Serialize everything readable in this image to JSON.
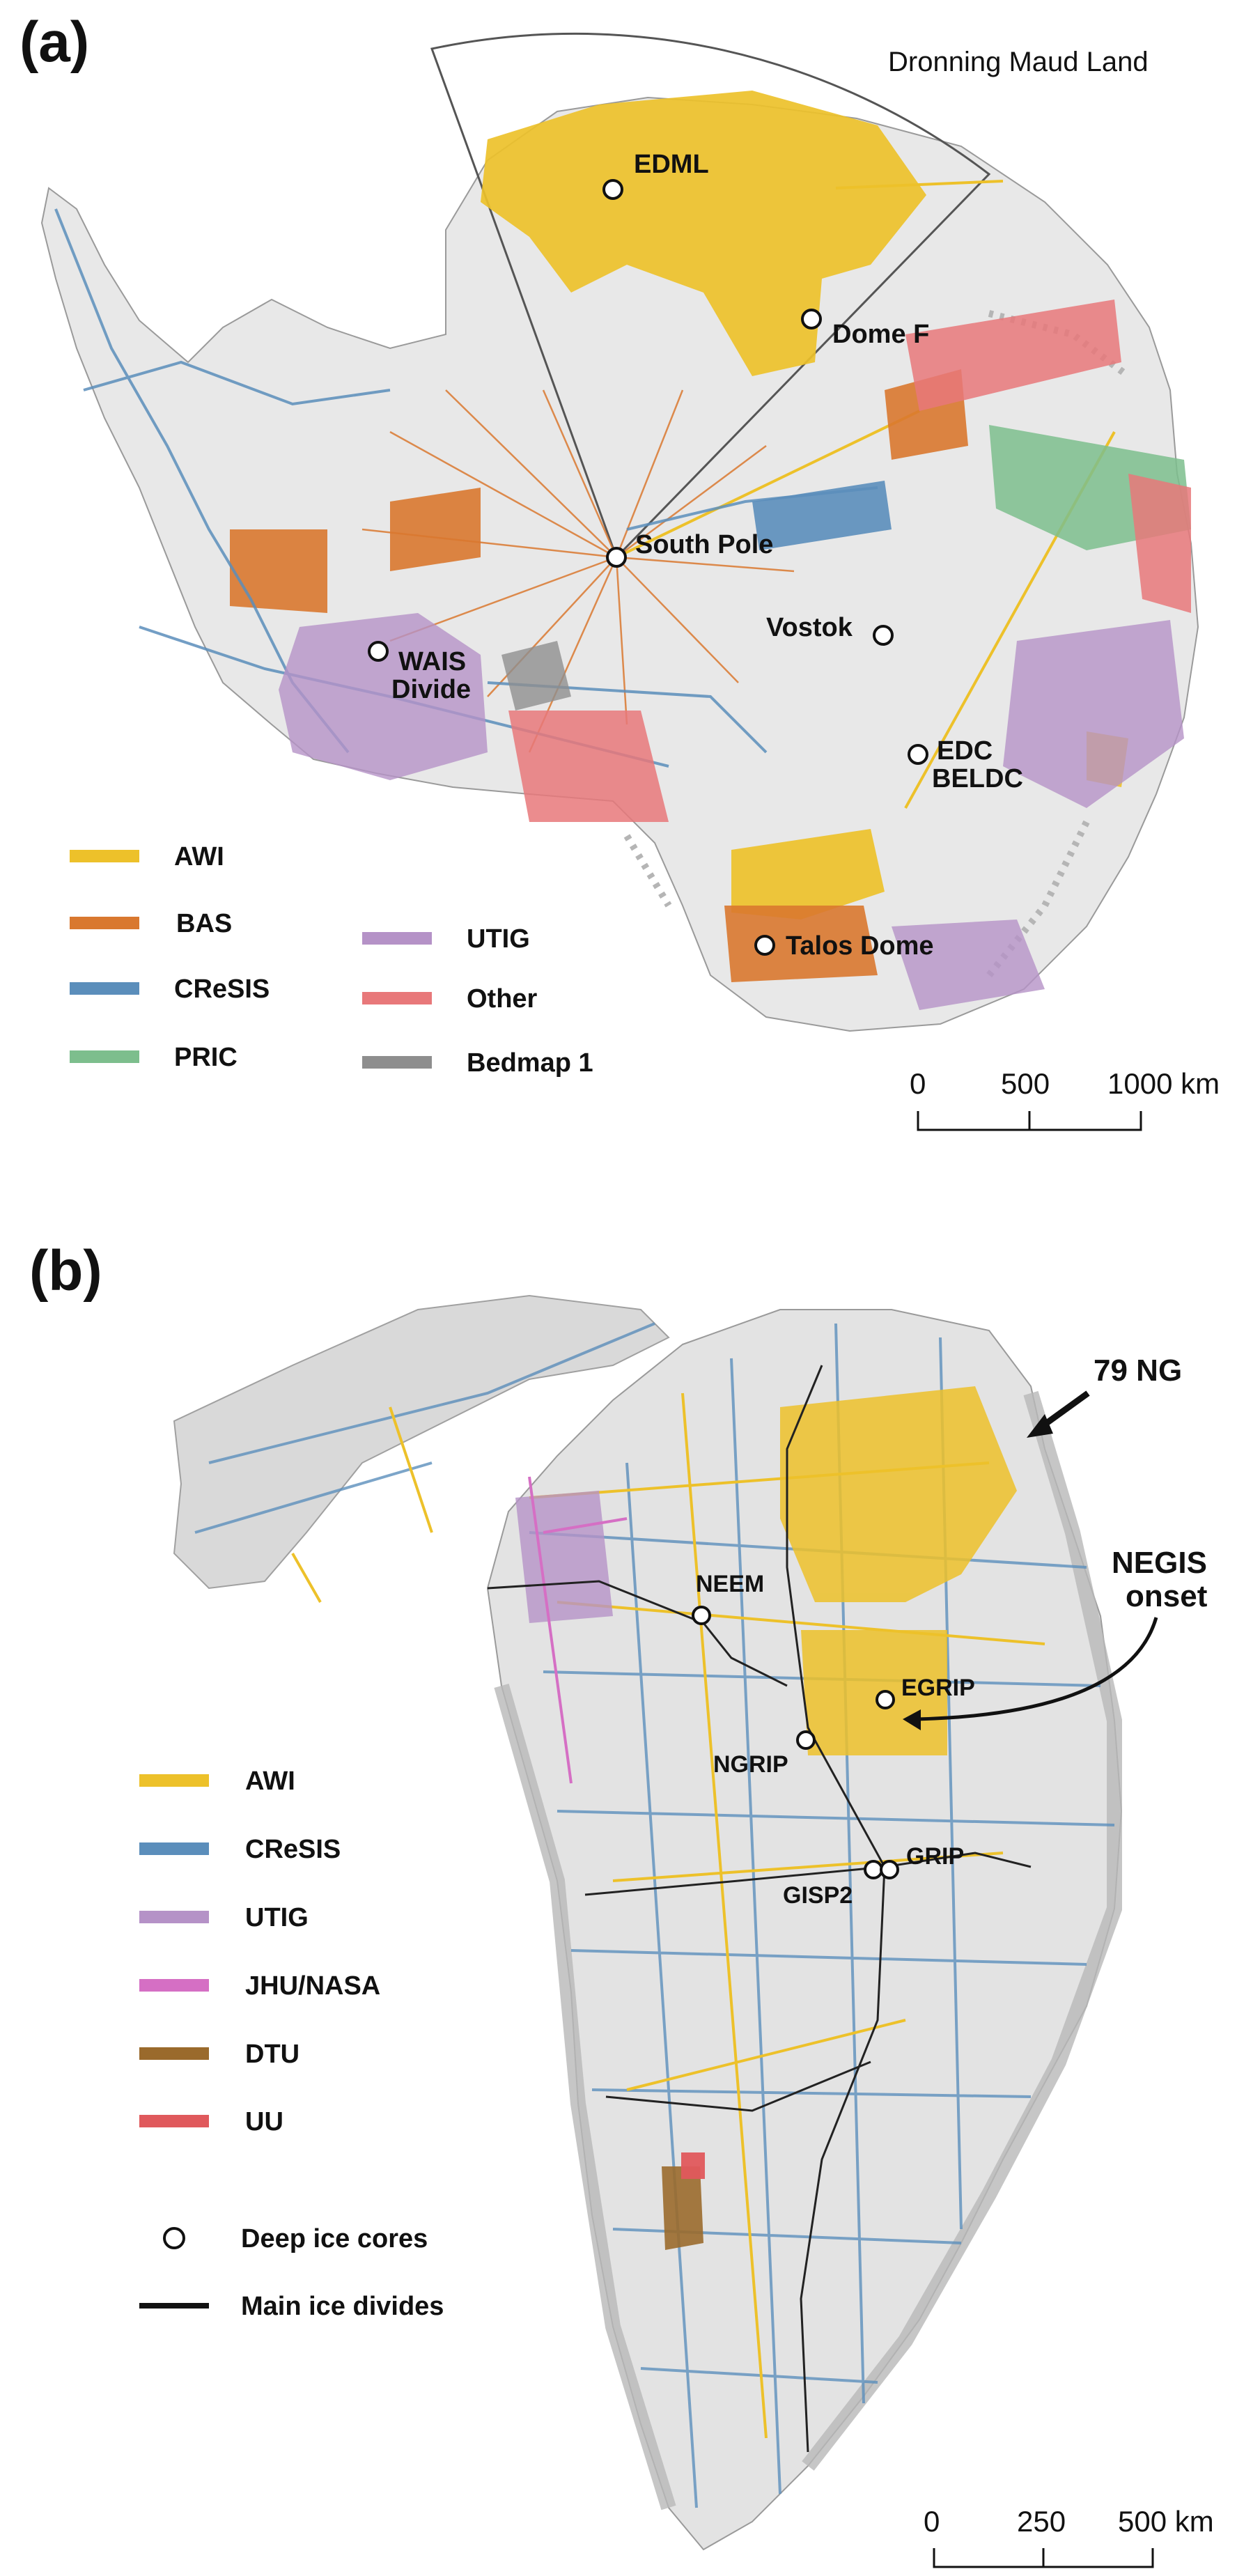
{
  "panel_a": {
    "label": "(a)",
    "region_label": "Dronning Maud Land",
    "sites": [
      "EDML",
      "Dome F",
      "South Pole",
      "Vostok",
      "WAIS",
      "Divide",
      "EDC",
      "BELDC",
      "Talos Dome"
    ],
    "legend": [
      {
        "label": "AWI",
        "color": "#EDC12A"
      },
      {
        "label": "BAS",
        "color": "#D9782F"
      },
      {
        "label": "CReSIS",
        "color": "#5B8EBB"
      },
      {
        "label": "PRIC",
        "color": "#7DBE8D"
      },
      {
        "label": "UTIG",
        "color": "#B592C7"
      },
      {
        "label": "Other",
        "color": "#E8787A"
      },
      {
        "label": "Bedmap 1",
        "color": "#8E8E8E"
      }
    ],
    "scale": {
      "ticks": [
        "0",
        "500",
        "1000 km"
      ]
    }
  },
  "panel_b": {
    "label": "(b)",
    "sites": [
      "NEEM",
      "EGRIP",
      "NGRIP",
      "GISP2",
      "GRIP"
    ],
    "callouts": [
      "79 NG",
      "NEGIS",
      "onset"
    ],
    "legend": [
      {
        "label": "AWI",
        "color": "#EDC12A"
      },
      {
        "label": "CReSIS",
        "color": "#5B8EBB"
      },
      {
        "label": "UTIG",
        "color": "#B592C7"
      },
      {
        "label": "JHU/NASA",
        "color": "#D56FC4"
      },
      {
        "label": "DTU",
        "color": "#9A6A2C"
      },
      {
        "label": "UU",
        "color": "#E0595C"
      }
    ],
    "legend_symbols": [
      "Deep ice cores",
      "Main ice divides"
    ],
    "scale": {
      "ticks": [
        "0",
        "250",
        "500 km"
      ]
    }
  },
  "colors": {
    "ice_sheet": "#E6E6E6",
    "rock_shade": "#BDBDBD",
    "ice_divide": "#222222",
    "core_marker_fill": "#ffffff"
  }
}
